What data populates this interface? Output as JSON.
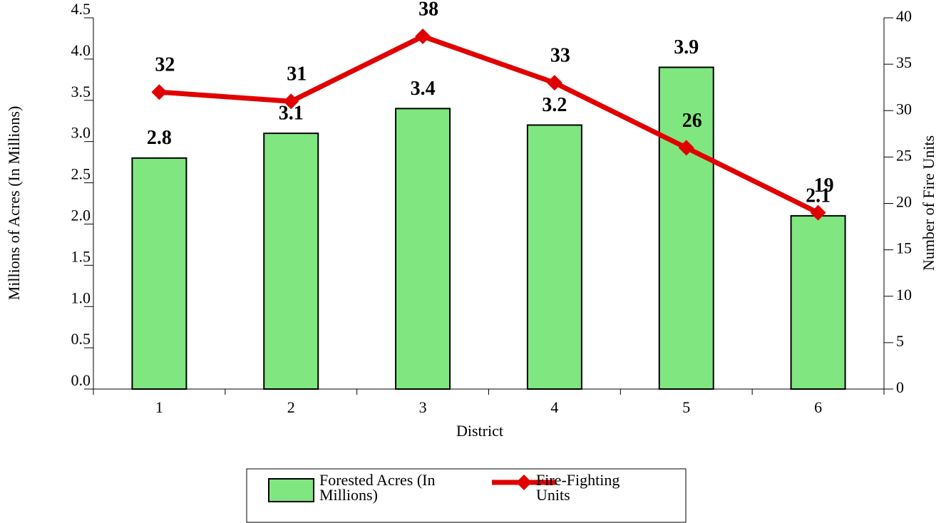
{
  "chart_data": {
    "type": "bar-line",
    "x_label": "District",
    "y_label": "Millions of Acres (In Millions)",
    "y2_label": "Number of Fire Units",
    "categories": [
      "1",
      "2",
      "3",
      "4",
      "5",
      "6"
    ],
    "series": [
      {
        "name": "Forested Acres (In Millions)",
        "type": "bar",
        "color": "#80e680",
        "values": [
          2.8,
          3.1,
          3.4,
          3.2,
          3.9,
          2.1
        ]
      },
      {
        "name": "Fire-Fighting Units",
        "type": "line",
        "axis": "y2",
        "color": "#e00000",
        "values": [
          32,
          31,
          38,
          33,
          26,
          19
        ]
      }
    ],
    "ylim": [
      0,
      4.5
    ],
    "yticks": [
      {
        "value": 0,
        "label": "0.0"
      },
      0.5,
      {
        "value": 1,
        "label": "1.0"
      },
      1.5,
      {
        "value": 2,
        "label": "2.0"
      },
      2.5,
      {
        "value": 3,
        "label": "3.0"
      },
      3.5,
      {
        "value": 4,
        "label": "4.0"
      },
      4.5
    ],
    "y2lim": [
      0,
      40
    ],
    "y2ticks": [
      0,
      5,
      10,
      15,
      20,
      25,
      30,
      35,
      40
    ],
    "legend": "bottom"
  }
}
